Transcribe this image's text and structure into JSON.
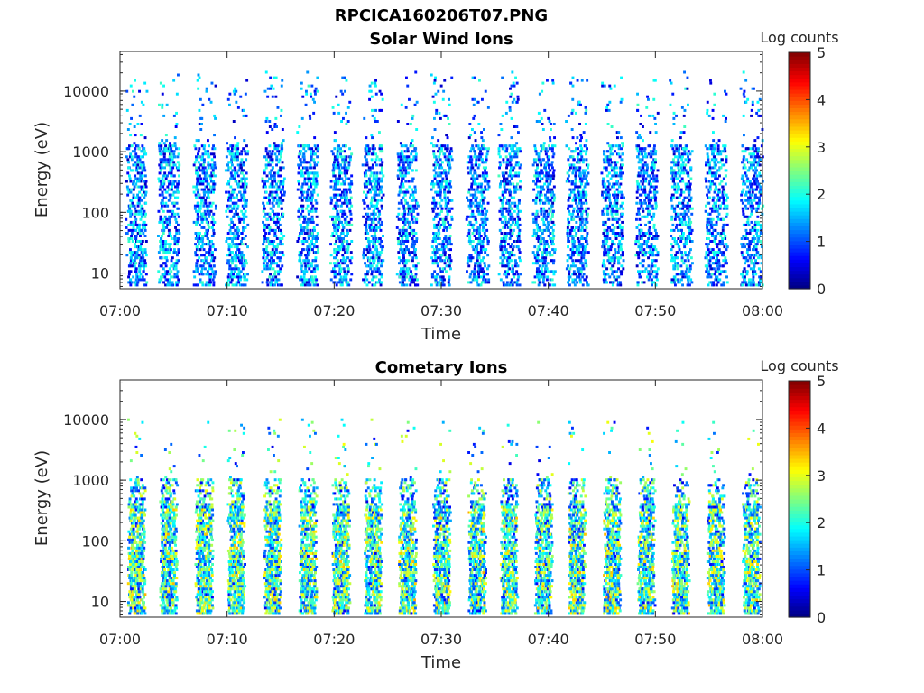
{
  "figure": {
    "title": "RPCICA160206T07.PNG"
  },
  "chart_data": [
    {
      "type": "heatmap",
      "title": "Solar Wind Ions",
      "xlabel": "Time",
      "ylabel": "Energy (eV)",
      "x_ticks": [
        "07:00",
        "07:10",
        "07:20",
        "07:30",
        "07:40",
        "07:50",
        "08:00"
      ],
      "xlim": [
        "07:00",
        "08:00"
      ],
      "y_scale": "log",
      "y_ticks": [
        "10",
        "100",
        "1000",
        "10000"
      ],
      "ylim": [
        5.5,
        45000
      ],
      "colorbar": {
        "label": "Log counts",
        "ticks": [
          "0",
          "1",
          "2",
          "3",
          "4",
          "5"
        ],
        "range": [
          0,
          5
        ],
        "colormap": "jet"
      },
      "grid": false,
      "bursts_minutes": [
        1.5,
        4.5,
        7.8,
        10.8,
        14.2,
        17.5,
        20.6,
        23.6,
        26.8,
        30.0,
        33.3,
        36.3,
        39.5,
        42.6,
        45.9,
        49.1,
        52.3,
        55.6,
        58.9
      ],
      "energy_range_eV": [
        6,
        20000
      ],
      "typical_log_counts": [
        0.3,
        2.2
      ]
    },
    {
      "type": "heatmap",
      "title": "Cometary Ions",
      "xlabel": "Time",
      "ylabel": "Energy (eV)",
      "x_ticks": [
        "07:00",
        "07:10",
        "07:20",
        "07:30",
        "07:40",
        "07:50",
        "08:00"
      ],
      "xlim": [
        "07:00",
        "08:00"
      ],
      "y_scale": "log",
      "y_ticks": [
        "10",
        "100",
        "1000",
        "10000"
      ],
      "ylim": [
        5.5,
        45000
      ],
      "colorbar": {
        "label": "Log counts",
        "ticks": [
          "0",
          "1",
          "2",
          "3",
          "4",
          "5"
        ],
        "range": [
          0,
          5
        ],
        "colormap": "jet"
      },
      "grid": false,
      "bursts_minutes": [
        1.5,
        4.5,
        7.8,
        10.8,
        14.2,
        17.5,
        20.6,
        23.6,
        26.8,
        30.0,
        33.3,
        36.3,
        39.5,
        42.6,
        45.9,
        49.1,
        52.3,
        55.6,
        58.9
      ],
      "energy_range_eV": [
        6,
        10000
      ],
      "typical_log_counts": [
        0.5,
        3.1
      ]
    }
  ]
}
